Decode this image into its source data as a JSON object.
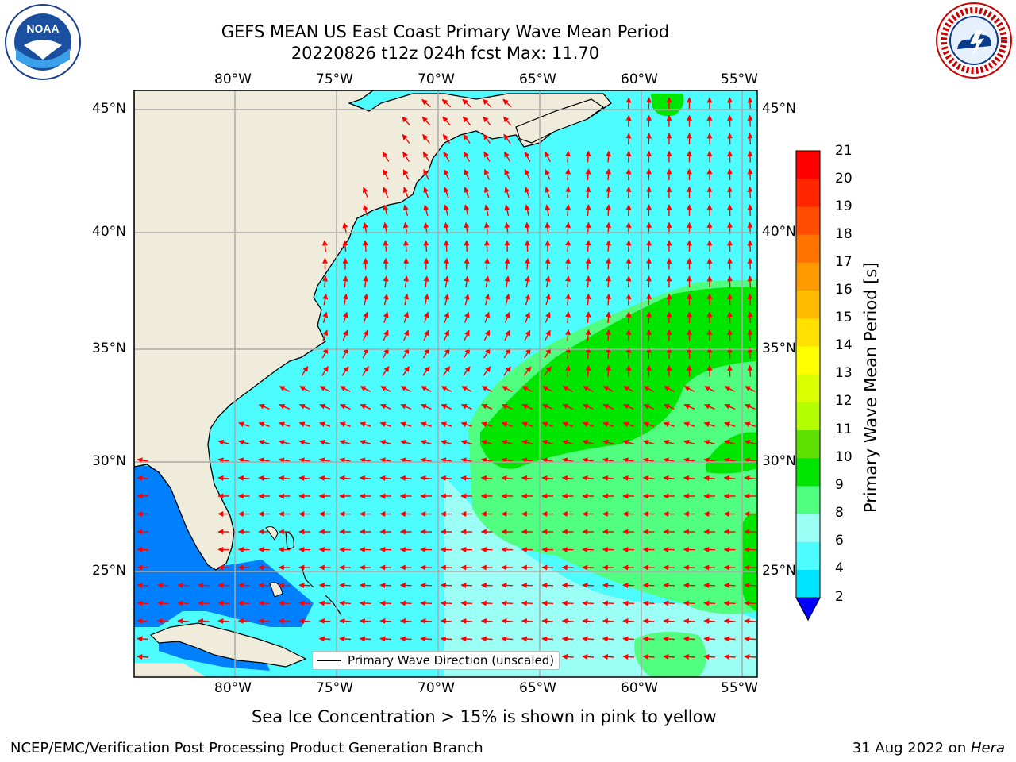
{
  "header": {
    "title_line1": "GEFS MEAN US East Coast Primary Wave Mean Period",
    "title_line2": "20220826 t12z 024h fcst   Max: 11.70"
  },
  "logos": {
    "left": "noa-logo",
    "right": "nws-logo",
    "left_text": "NOAA",
    "right_text": "NATIONAL WEATHER SERVICE"
  },
  "map": {
    "lon_labels": [
      "80°W",
      "75°W",
      "70°W",
      "65°W",
      "60°W",
      "55°W"
    ],
    "lat_labels": [
      "45°N",
      "40°N",
      "35°N",
      "30°N",
      "25°N"
    ],
    "legend_label": "Primary Wave Direction (unscaled)",
    "land_color": "#efecdc",
    "arrow_color": "#ff0000"
  },
  "colorbar": {
    "title": "Primary Wave Mean Period [s]",
    "ticks": [
      "21",
      "20",
      "19",
      "18",
      "17",
      "16",
      "15",
      "14",
      "13",
      "12",
      "11",
      "10",
      "9",
      "8",
      "6",
      "4",
      "2"
    ],
    "colors": [
      "#ff0000",
      "#ff2600",
      "#ff4c00",
      "#ff7300",
      "#ff9900",
      "#ffbb00",
      "#ffe000",
      "#ffff00",
      "#d9ff00",
      "#b3ff00",
      "#60e000",
      "#00e600",
      "#50ff80",
      "#9cfff6",
      "#4cfcff",
      "#00e5ff",
      "#0080ff"
    ],
    "under_color": "#0000ff"
  },
  "footer": {
    "note": "Sea Ice Concentration > 15% is shown in pink to yellow",
    "left": "NCEP/EMC/Verification Post Processing Product Generation Branch",
    "date": "31 Aug 2022 on ",
    "machine": "Hera"
  }
}
